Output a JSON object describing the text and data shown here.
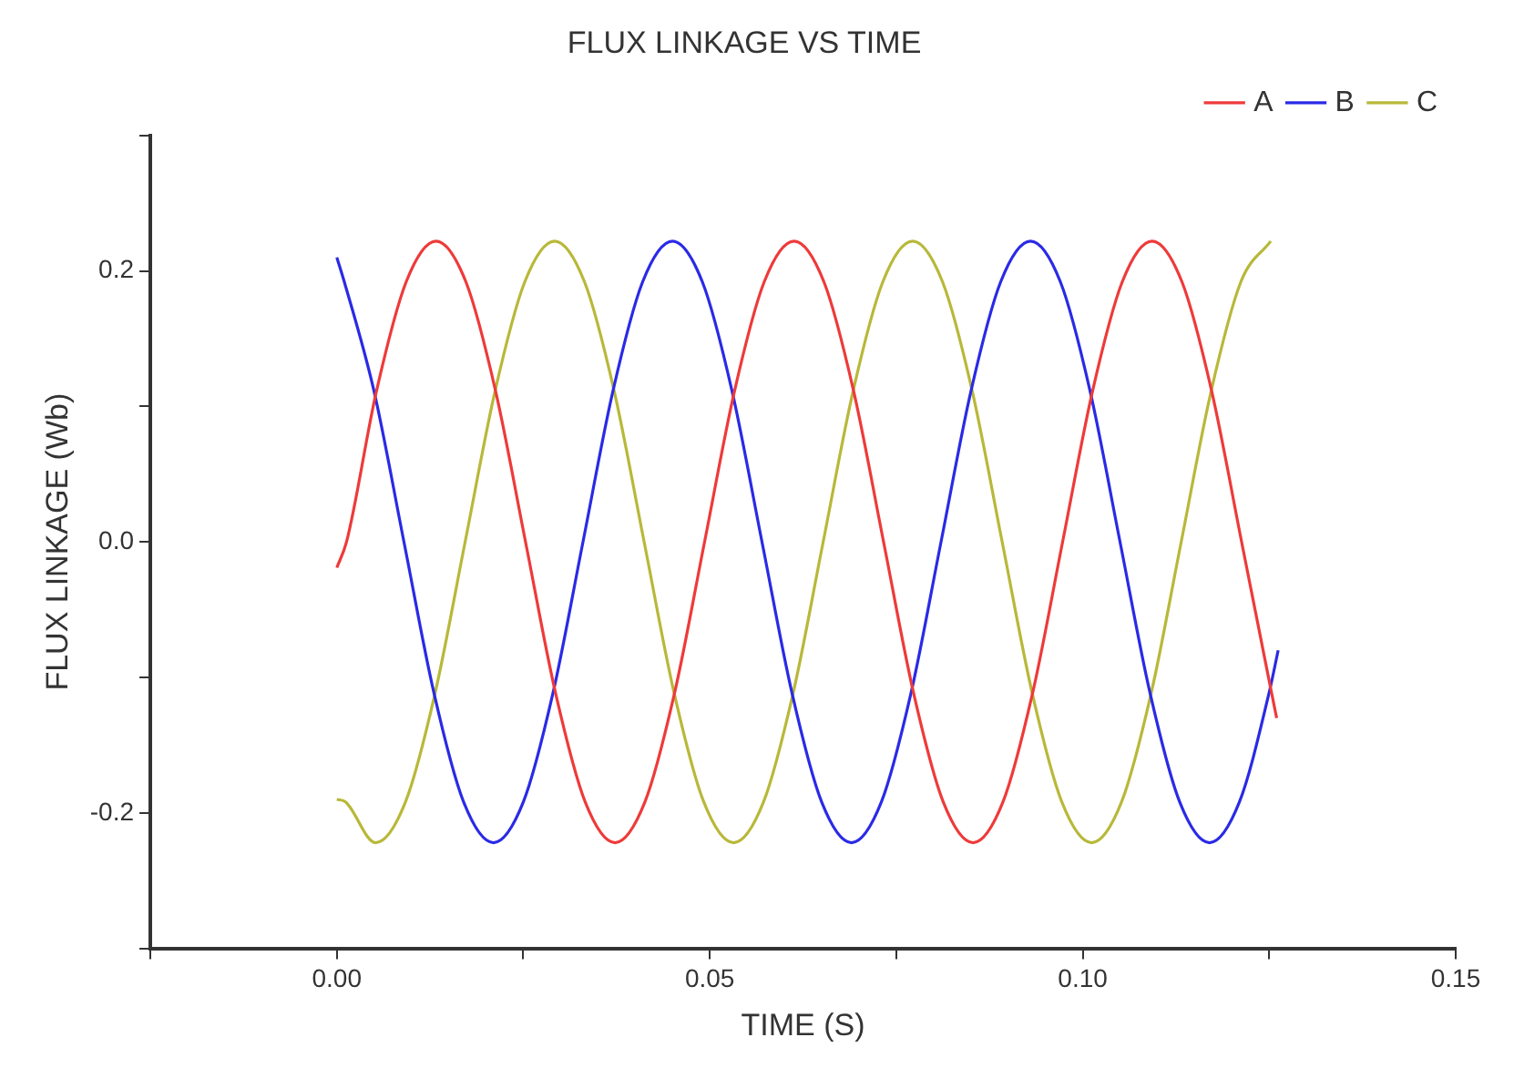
{
  "chart_data": {
    "type": "line",
    "title": "FLUX LINKAGE VS TIME",
    "xlabel": "TIME (S)",
    "ylabel": "FLUX LINKAGE (Wb)",
    "xlim": [
      -0.025,
      0.15
    ],
    "xticks": [
      {
        "value": -0.025,
        "label": null
      },
      {
        "value": 0,
        "label": "0.00"
      },
      {
        "value": 0.025,
        "label": null
      },
      {
        "value": 0.05,
        "label": "0.05"
      },
      {
        "value": 0.075,
        "label": null
      },
      {
        "value": 0.1,
        "label": "0.10"
      },
      {
        "value": 0.125,
        "label": null
      },
      {
        "value": 0.15,
        "label": "0.15"
      }
    ],
    "ylim": [
      -0.3,
      0.3
    ],
    "yticks": [
      {
        "value": -0.3,
        "label": null
      },
      {
        "value": -0.2,
        "label": "-0.2"
      },
      {
        "value": -0.1,
        "label": null
      },
      {
        "value": 0,
        "label": "0.0"
      },
      {
        "value": 0.1,
        "label": null
      },
      {
        "value": 0.2,
        "label": "0.2"
      },
      {
        "value": 0.3,
        "label": null
      }
    ],
    "grid": false,
    "legend": "top right",
    "marker": "none",
    "line_style": "solid",
    "series": [
      {
        "name": "A",
        "color": "#ee3a3a",
        "x": [
          0,
          0.0013,
          0.0053,
          0.0093,
          0.0133,
          0.0173,
          0.0213,
          0.0253,
          0.0293,
          0.0333,
          0.0373,
          0.0413,
          0.0453,
          0.0493,
          0.0533,
          0.0573,
          0.0613,
          0.0653,
          0.0693,
          0.0733,
          0.0773,
          0.0813,
          0.0853,
          0.0893,
          0.0933,
          0.0973,
          0.1013,
          0.1053,
          0.1093,
          0.1133,
          0.1173,
          0.1213,
          0.1253,
          0.126
        ],
        "values": [
          -0.019,
          0,
          0.111,
          0.192,
          0.222,
          0.192,
          0.111,
          0,
          -0.111,
          -0.192,
          -0.222,
          -0.192,
          -0.111,
          0,
          0.111,
          0.192,
          0.222,
          0.192,
          0.111,
          0,
          -0.111,
          -0.192,
          -0.222,
          -0.192,
          -0.111,
          0,
          0.111,
          0.192,
          0.222,
          0.192,
          0.111,
          0,
          -0.111,
          -0.13
        ]
      },
      {
        "name": "B",
        "color": "#2a2ae6",
        "x": [
          0,
          0.001,
          0.005,
          0.009,
          0.013,
          0.017,
          0.021,
          0.025,
          0.029,
          0.033,
          0.037,
          0.041,
          0.045,
          0.049,
          0.053,
          0.057,
          0.061,
          0.065,
          0.069,
          0.073,
          0.077,
          0.081,
          0.085,
          0.089,
          0.093,
          0.097,
          0.101,
          0.105,
          0.109,
          0.113,
          0.117,
          0.121,
          0.125,
          0.1262
        ],
        "values": [
          0.21,
          0.192,
          0.111,
          0,
          -0.111,
          -0.192,
          -0.222,
          -0.192,
          -0.111,
          0,
          0.111,
          0.192,
          0.222,
          0.192,
          0.111,
          0,
          -0.111,
          -0.192,
          -0.222,
          -0.192,
          -0.111,
          0,
          0.111,
          0.192,
          0.222,
          0.192,
          0.111,
          0,
          -0.111,
          -0.192,
          -0.222,
          -0.192,
          -0.111,
          -0.08
        ]
      },
      {
        "name": "C",
        "color": "#b8b83a",
        "x": [
          0,
          0.0012,
          0.0052,
          0.0092,
          0.0132,
          0.0172,
          0.0212,
          0.0252,
          0.0292,
          0.0332,
          0.0372,
          0.0412,
          0.0452,
          0.0492,
          0.0532,
          0.0572,
          0.0612,
          0.0652,
          0.0692,
          0.0732,
          0.0772,
          0.0812,
          0.0852,
          0.0892,
          0.0932,
          0.0972,
          0.1012,
          0.1052,
          0.1092,
          0.1132,
          0.1172,
          0.1212,
          0.1252
        ],
        "values": [
          -0.19,
          -0.192,
          -0.222,
          -0.192,
          -0.111,
          0,
          0.111,
          0.192,
          0.222,
          0.192,
          0.111,
          0,
          -0.111,
          -0.192,
          -0.222,
          -0.192,
          -0.111,
          0,
          0.111,
          0.192,
          0.222,
          0.192,
          0.111,
          0,
          -0.111,
          -0.192,
          -0.222,
          -0.192,
          -0.111,
          0,
          0.111,
          0.192,
          0.222
        ]
      }
    ]
  }
}
